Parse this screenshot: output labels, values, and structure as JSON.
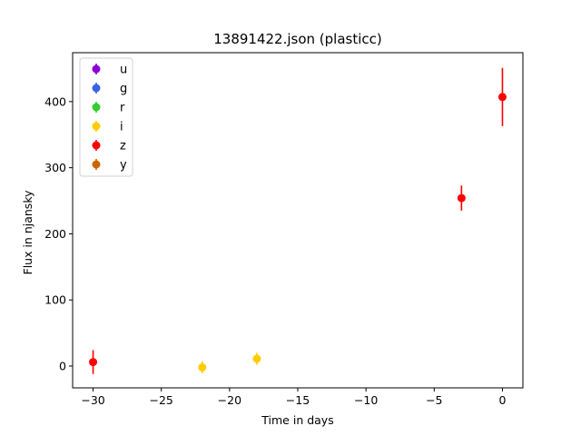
{
  "chart_data": {
    "type": "scatter",
    "title": "13891422.json (plasticc)",
    "xlabel": "Time in days",
    "ylabel": "Flux in njansky",
    "xlim": [
      -31.5,
      1.5
    ],
    "ylim": [
      -33,
      474
    ],
    "xticks": [
      -30,
      -25,
      -20,
      -15,
      -10,
      -5,
      0
    ],
    "xtick_labels": [
      "−30",
      "−25",
      "−20",
      "−15",
      "−10",
      "−5",
      "0"
    ],
    "yticks": [
      0,
      100,
      200,
      300,
      400
    ],
    "ytick_labels": [
      "0",
      "100",
      "200",
      "300",
      "400"
    ],
    "grid": false,
    "legend_position": "top-left",
    "series": [
      {
        "name": "u",
        "color": "#8b00d6",
        "points": []
      },
      {
        "name": "g",
        "color": "#3a60e6",
        "points": []
      },
      {
        "name": "r",
        "color": "#33cc33",
        "points": []
      },
      {
        "name": "i",
        "color": "#ffcc00",
        "points": [
          {
            "x": -22,
            "y": -2,
            "err": 9
          },
          {
            "x": -18,
            "y": 11,
            "err": 9
          }
        ]
      },
      {
        "name": "z",
        "color": "#ff0000",
        "points": [
          {
            "x": -30,
            "y": 6,
            "err": 18
          },
          {
            "x": -3,
            "y": 254,
            "err": 19
          },
          {
            "x": 0,
            "y": 407,
            "err": 44
          }
        ]
      },
      {
        "name": "y",
        "color": "#cc6600",
        "points": []
      }
    ]
  }
}
